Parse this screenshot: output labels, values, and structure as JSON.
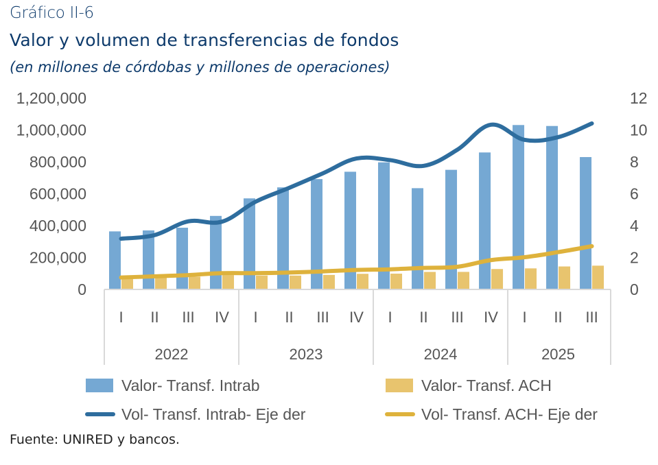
{
  "header": {
    "label": "Gráfico II-6",
    "title": "Valor y volumen de transferencias de fondos",
    "subtitle": "(en millones de córdobas y millones de operaciones)"
  },
  "source": "Fuente: UNIRED y bancos.",
  "chart_data": {
    "type": "bar",
    "title": "Valor y volumen de transferencias de fondos",
    "subtitle": "(en millones de córdobas y millones de operaciones)",
    "xlabel": "",
    "ylabel": "",
    "categories": [
      "I",
      "II",
      "III",
      "IV",
      "I",
      "II",
      "III",
      "IV",
      "I",
      "II",
      "III",
      "IV",
      "I",
      "II",
      "III"
    ],
    "groups": [
      {
        "label": "2022",
        "count": 4
      },
      {
        "label": "2023",
        "count": 4
      },
      {
        "label": "2024",
        "count": 4
      },
      {
        "label": "2025",
        "count": 3
      }
    ],
    "ylim": [
      0,
      1200000
    ],
    "yticks": [
      0,
      200000,
      400000,
      600000,
      800000,
      1000000,
      1200000
    ],
    "ytick_labels": [
      "0",
      "200,000",
      "400,000",
      "600,000",
      "800,000",
      "1,000,000",
      "1,200,000"
    ],
    "y2lim": [
      0,
      12
    ],
    "y2ticks": [
      0,
      2,
      4,
      6,
      8,
      10,
      12
    ],
    "y2tick_labels": [
      "0",
      "2",
      "4",
      "6",
      "8",
      "10",
      "12"
    ],
    "grid": false,
    "legend_position": "bottom",
    "series": [
      {
        "name": "Valor- Transf. Intrab",
        "type": "bar",
        "axis": "left",
        "color": "#75a8d3",
        "values": [
          364000,
          370000,
          387000,
          461000,
          571000,
          640000,
          692000,
          738000,
          797000,
          635000,
          750000,
          859000,
          1031000,
          1025000,
          830000
        ]
      },
      {
        "name": "Valor- Transf. ACH",
        "type": "bar",
        "axis": "left",
        "color": "#e8c46e",
        "values": [
          72000,
          74000,
          80000,
          90000,
          87000,
          87000,
          91000,
          98000,
          99000,
          110000,
          110000,
          128000,
          132000,
          144000,
          149000
        ]
      },
      {
        "name": "Vol- Transf. Intrab- Eje der",
        "type": "line",
        "axis": "right",
        "color": "#2e6d9e",
        "values": [
          3.18,
          3.41,
          4.27,
          4.25,
          5.5,
          6.37,
          7.28,
          8.21,
          8.11,
          7.75,
          8.76,
          10.33,
          9.38,
          9.55,
          10.41
        ]
      },
      {
        "name": "Vol- Transf. ACH- Eje der",
        "type": "line",
        "axis": "right",
        "color": "#deb23c",
        "values": [
          0.75,
          0.82,
          0.9,
          1.02,
          1.02,
          1.06,
          1.13,
          1.22,
          1.26,
          1.35,
          1.42,
          1.84,
          2.02,
          2.34,
          2.71
        ]
      }
    ]
  }
}
